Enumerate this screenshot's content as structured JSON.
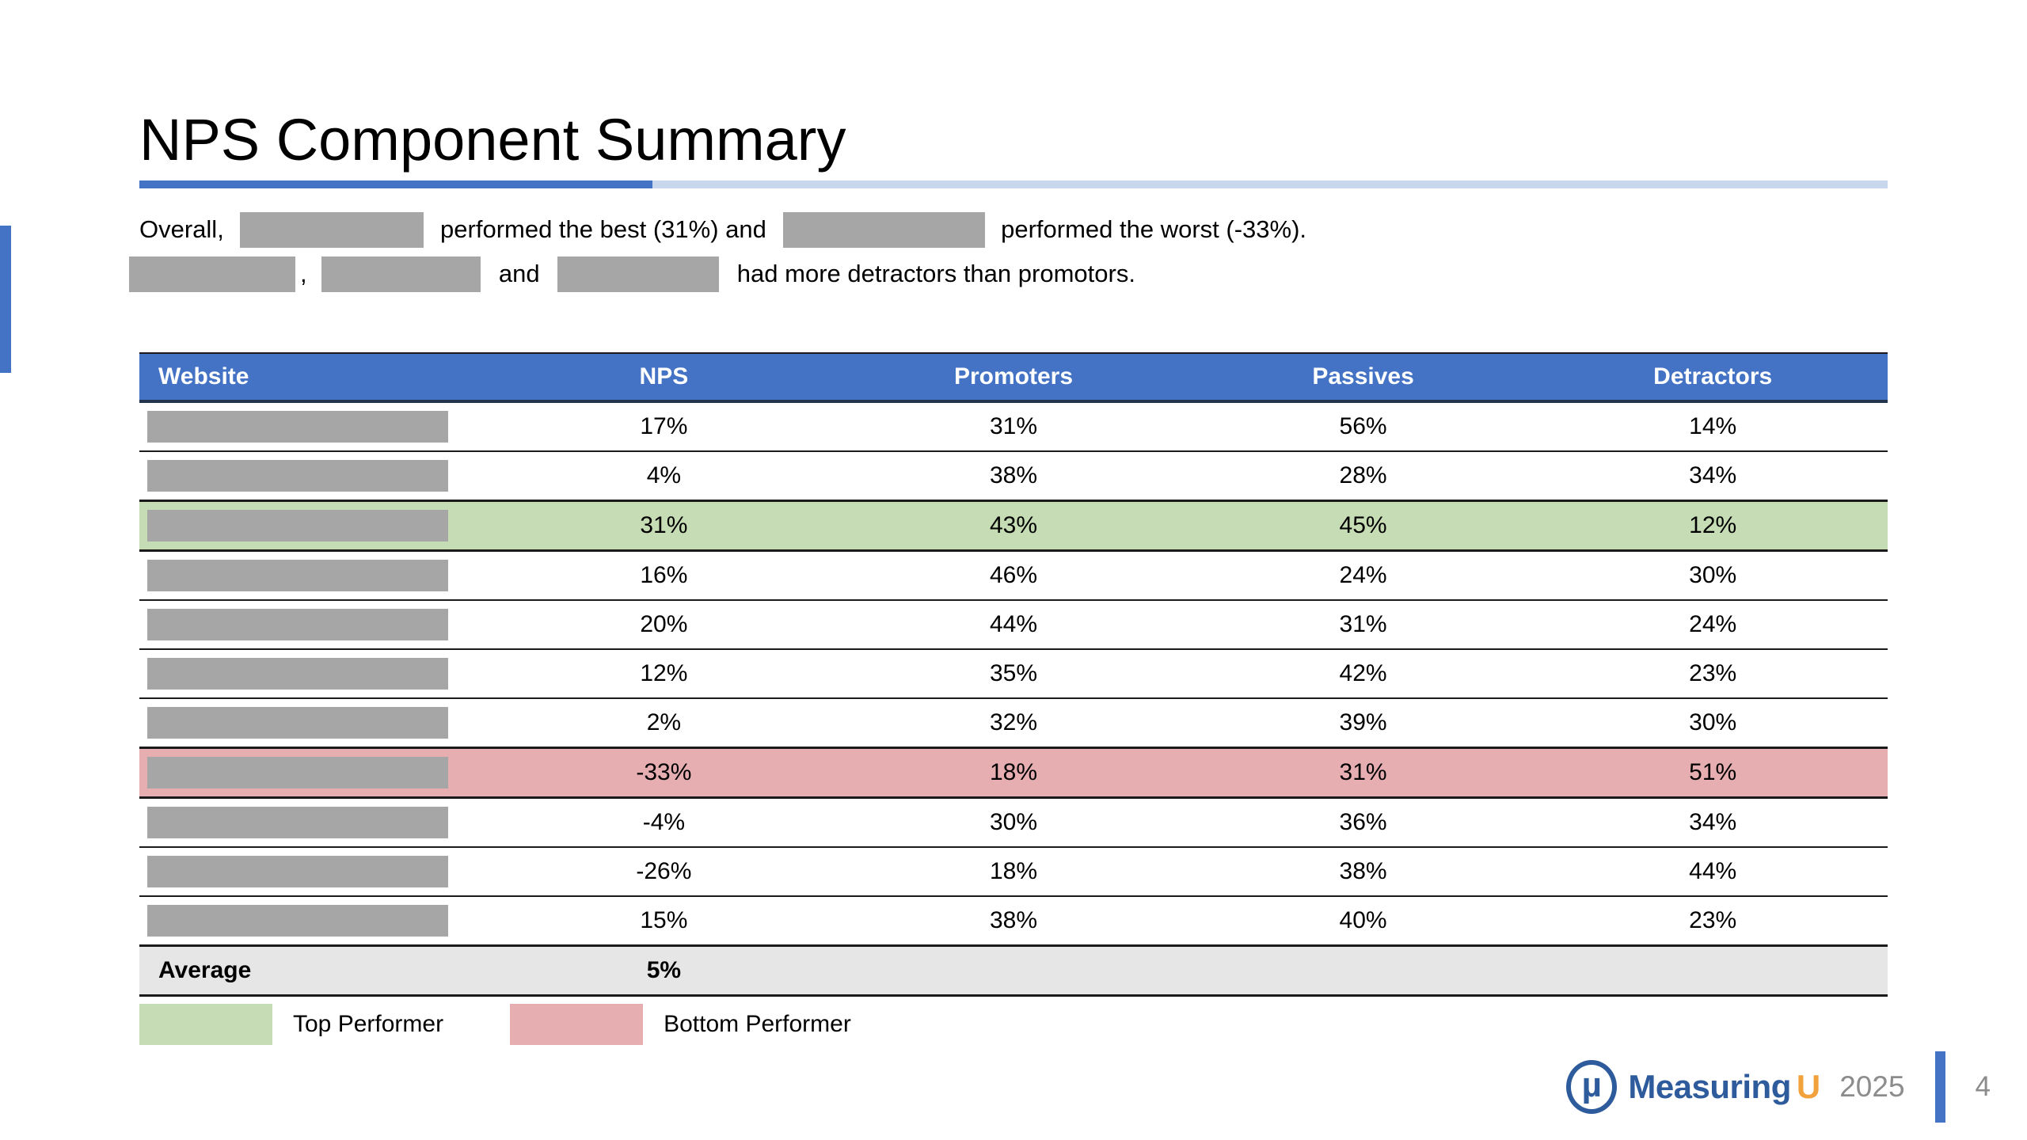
{
  "slide": {
    "title": "NPS Component Summary"
  },
  "summary": {
    "line1": {
      "text1": "Overall, ",
      "text2": " performed the best (31%) and ",
      "text3": " performed the worst (-33%)."
    },
    "line2": {
      "comma": ", ",
      "and": " and ",
      "text": " had more detractors than promotors."
    }
  },
  "table": {
    "columns": [
      "Website",
      "NPS",
      "Promoters",
      "Passives",
      "Detractors"
    ],
    "rows": [
      {
        "nps": "17%",
        "promoters": "31%",
        "passives": "56%",
        "detractors": "14%",
        "highlight": ""
      },
      {
        "nps": "4%",
        "promoters": "38%",
        "passives": "28%",
        "detractors": "34%",
        "highlight": ""
      },
      {
        "nps": "31%",
        "promoters": "43%",
        "passives": "45%",
        "detractors": "12%",
        "highlight": "top"
      },
      {
        "nps": "16%",
        "promoters": "46%",
        "passives": "24%",
        "detractors": "30%",
        "highlight": ""
      },
      {
        "nps": "20%",
        "promoters": "44%",
        "passives": "31%",
        "detractors": "24%",
        "highlight": ""
      },
      {
        "nps": "12%",
        "promoters": "35%",
        "passives": "42%",
        "detractors": "23%",
        "highlight": ""
      },
      {
        "nps": "2%",
        "promoters": "32%",
        "passives": "39%",
        "detractors": "30%",
        "highlight": ""
      },
      {
        "nps": "-33%",
        "promoters": "18%",
        "passives": "31%",
        "detractors": "51%",
        "highlight": "bottom"
      },
      {
        "nps": "-4%",
        "promoters": "30%",
        "passives": "36%",
        "detractors": "34%",
        "highlight": ""
      },
      {
        "nps": "-26%",
        "promoters": "18%",
        "passives": "38%",
        "detractors": "44%",
        "highlight": ""
      },
      {
        "nps": "15%",
        "promoters": "38%",
        "passives": "40%",
        "detractors": "23%",
        "highlight": ""
      }
    ],
    "average": {
      "label": "Average",
      "nps": "5%"
    }
  },
  "legend": {
    "top": {
      "label": "Top Performer",
      "color": "#c5dcb4"
    },
    "bottom": {
      "label": "Bottom Performer",
      "color": "#e6aeb1"
    }
  },
  "footer": {
    "logo_glyph": "µ",
    "brand": "Measuring",
    "brand_accent": "U",
    "year": "2025",
    "page": "4"
  },
  "colors": {
    "accent": "#4472c4",
    "divider-light": "#c9d7ee",
    "row-green": "#c5dcb4",
    "row-pink": "#e6aeb1",
    "row-average": "#e7e6e6",
    "redaction-gray": "#a6a6a6",
    "border-dark": "#1a1a1a",
    "header-border": "#24344d",
    "brand-blue": "#2e5b9c",
    "brand-orange": "#f2a23c",
    "footer-gray": "#8c8c8c"
  }
}
